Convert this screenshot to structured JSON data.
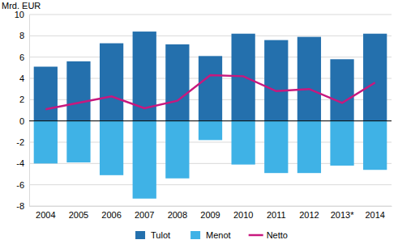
{
  "chart_data": {
    "type": "bar",
    "y_label": "Mrd. EUR",
    "categories": [
      "2004",
      "2005",
      "2006",
      "2007",
      "2008",
      "2009",
      "2010",
      "2011",
      "2012",
      "2013*",
      "2014"
    ],
    "series": [
      {
        "name": "Tulot",
        "type": "bar",
        "color": "#2470ad",
        "values": [
          5.1,
          5.6,
          7.3,
          8.4,
          7.2,
          6.1,
          8.2,
          7.6,
          7.9,
          5.8,
          8.2
        ]
      },
      {
        "name": "Menot",
        "type": "bar",
        "color": "#3fb2e6",
        "values": [
          -4.0,
          -3.9,
          -5.1,
          -7.3,
          -5.4,
          -1.8,
          -4.1,
          -4.9,
          -4.9,
          -4.2,
          -4.6
        ]
      },
      {
        "name": "Netto",
        "type": "line",
        "color": "#c8187e",
        "values": [
          1.1,
          1.7,
          2.3,
          1.2,
          1.9,
          4.3,
          4.2,
          2.8,
          3.0,
          1.7,
          3.6
        ]
      }
    ],
    "ylim": [
      -8,
      10
    ],
    "yticks": [
      -8,
      -6,
      -4,
      -2,
      0,
      2,
      4,
      6,
      8,
      10
    ],
    "grid": true,
    "legend": "bottom"
  }
}
